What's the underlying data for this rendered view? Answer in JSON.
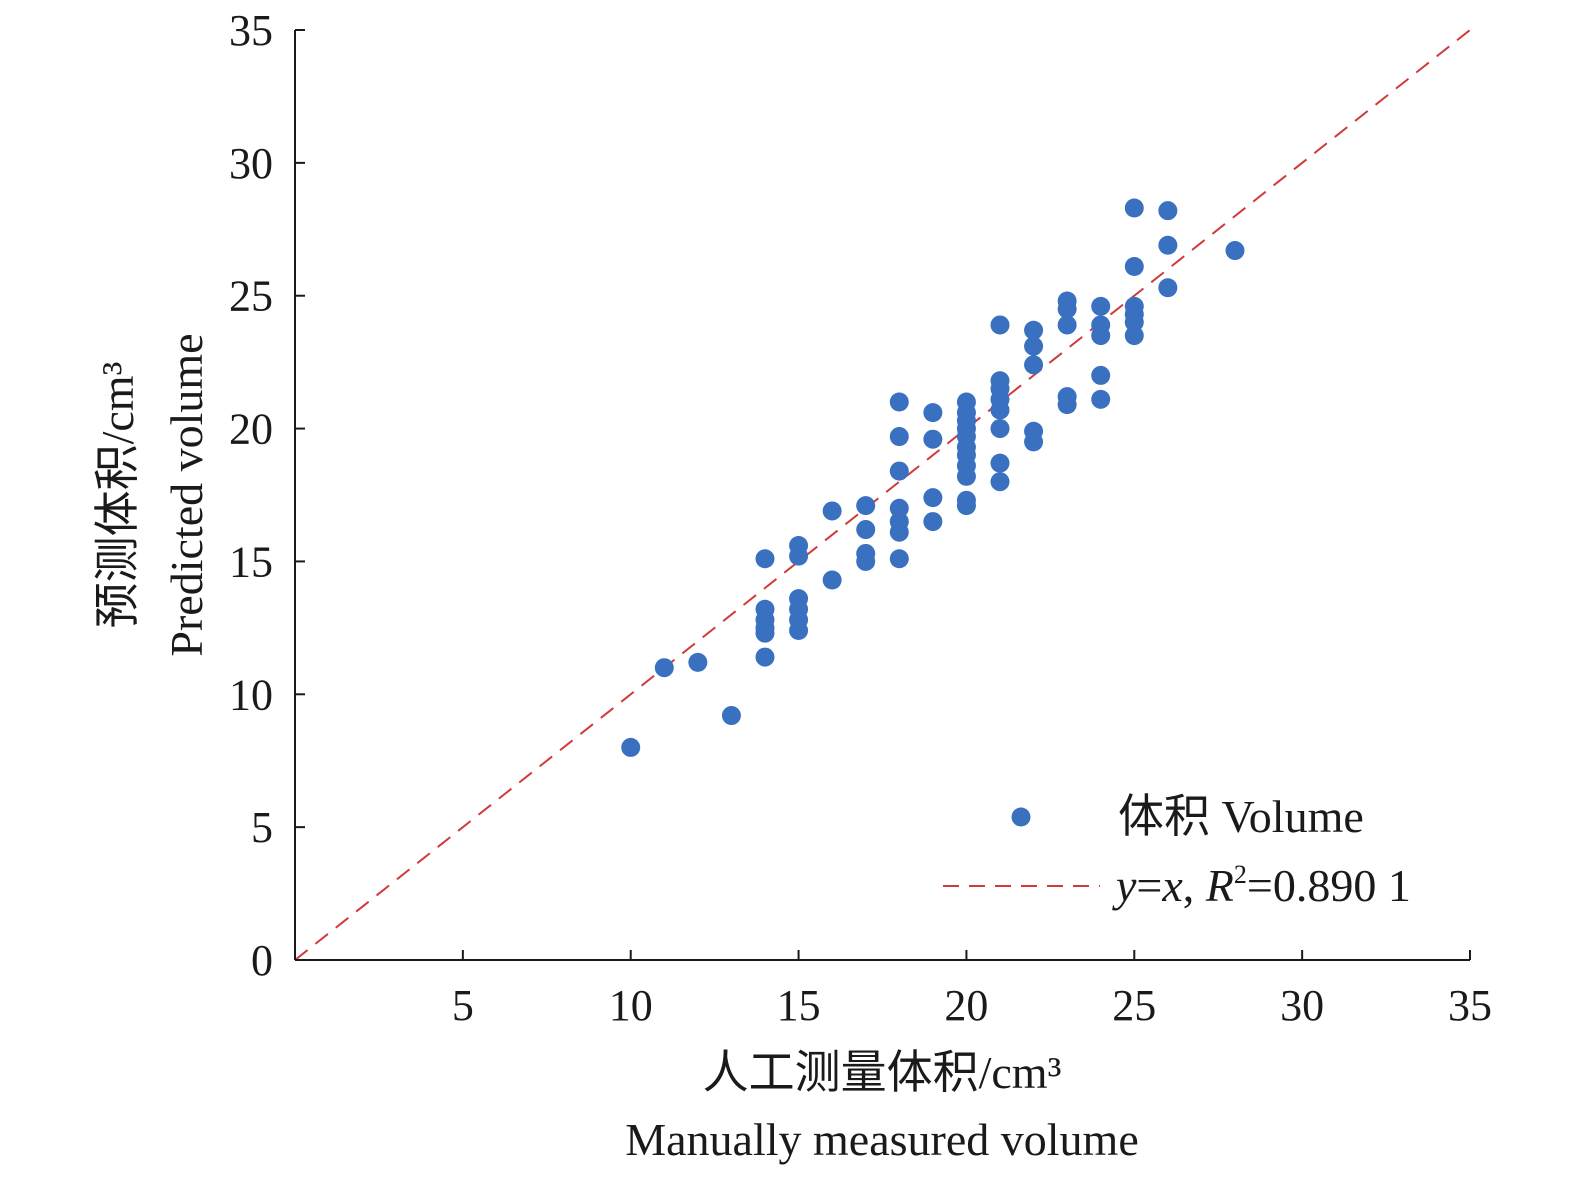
{
  "chart_data": {
    "type": "scatter",
    "title": "",
    "xlabel_cn": "人工测量体积/cm³",
    "xlabel_en": "Manually measured volume",
    "ylabel_cn": "预测体积/cm³",
    "ylabel_en": "Predicted volume",
    "xlim": [
      0,
      35
    ],
    "ylim": [
      0,
      35
    ],
    "xticks": [
      5,
      10,
      15,
      20,
      25,
      30,
      35
    ],
    "yticks": [
      0,
      5,
      10,
      15,
      20,
      25,
      30,
      35
    ],
    "colors": {
      "points": "#3a70c0",
      "reference_line": "#d23a3a",
      "axis": "#1a1a1a"
    },
    "legend": {
      "position": "bottom-right",
      "points_label": "体积 Volume",
      "line_label_parts": [
        "y",
        "=",
        "x",
        ", ",
        "R",
        "2",
        "=0.890 1"
      ]
    },
    "reference_line": {
      "from": [
        0,
        0
      ],
      "to": [
        35,
        35
      ],
      "style": "dashed",
      "r2": 0.8901
    },
    "series": [
      {
        "name": "体积 Volume",
        "points": [
          [
            10,
            8.0
          ],
          [
            11,
            11.0
          ],
          [
            12,
            11.2
          ],
          [
            13,
            9.2
          ],
          [
            14,
            15.1
          ],
          [
            14,
            13.2
          ],
          [
            14,
            12.8
          ],
          [
            14,
            12.5
          ],
          [
            14,
            12.3
          ],
          [
            14,
            11.4
          ],
          [
            15,
            15.6
          ],
          [
            15,
            15.2
          ],
          [
            15,
            13.6
          ],
          [
            15,
            13.2
          ],
          [
            15,
            12.8
          ],
          [
            15,
            12.4
          ],
          [
            16,
            16.9
          ],
          [
            16,
            14.3
          ],
          [
            17,
            17.1
          ],
          [
            17,
            16.2
          ],
          [
            17,
            15.3
          ],
          [
            17,
            15.0
          ],
          [
            18,
            21.0
          ],
          [
            18,
            19.7
          ],
          [
            18,
            18.4
          ],
          [
            18,
            17.0
          ],
          [
            18,
            16.5
          ],
          [
            18,
            16.1
          ],
          [
            18,
            15.1
          ],
          [
            19,
            20.6
          ],
          [
            19,
            19.6
          ],
          [
            19,
            17.4
          ],
          [
            19,
            16.5
          ],
          [
            20,
            21.0
          ],
          [
            20,
            20.6
          ],
          [
            20,
            20.3
          ],
          [
            20,
            20.0
          ],
          [
            20,
            19.7
          ],
          [
            20,
            19.3
          ],
          [
            20,
            19.0
          ],
          [
            20,
            18.6
          ],
          [
            20,
            18.2
          ],
          [
            20,
            17.3
          ],
          [
            20,
            17.1
          ],
          [
            21,
            23.9
          ],
          [
            21,
            21.8
          ],
          [
            21,
            21.5
          ],
          [
            21,
            21.1
          ],
          [
            21,
            20.7
          ],
          [
            21,
            20.0
          ],
          [
            21,
            18.7
          ],
          [
            21,
            18.0
          ],
          [
            22,
            23.7
          ],
          [
            22,
            23.1
          ],
          [
            22,
            22.4
          ],
          [
            22,
            19.9
          ],
          [
            22,
            19.5
          ],
          [
            23,
            24.8
          ],
          [
            23,
            24.5
          ],
          [
            23,
            23.9
          ],
          [
            23,
            21.2
          ],
          [
            23,
            20.9
          ],
          [
            24,
            24.6
          ],
          [
            24,
            23.9
          ],
          [
            24,
            23.5
          ],
          [
            24,
            22.0
          ],
          [
            24,
            21.1
          ],
          [
            25,
            28.3
          ],
          [
            25,
            26.1
          ],
          [
            25,
            24.6
          ],
          [
            25,
            24.3
          ],
          [
            25,
            24.0
          ],
          [
            25,
            23.5
          ],
          [
            26,
            28.2
          ],
          [
            26,
            26.9
          ],
          [
            26,
            25.3
          ],
          [
            28,
            26.7
          ]
        ]
      }
    ]
  }
}
